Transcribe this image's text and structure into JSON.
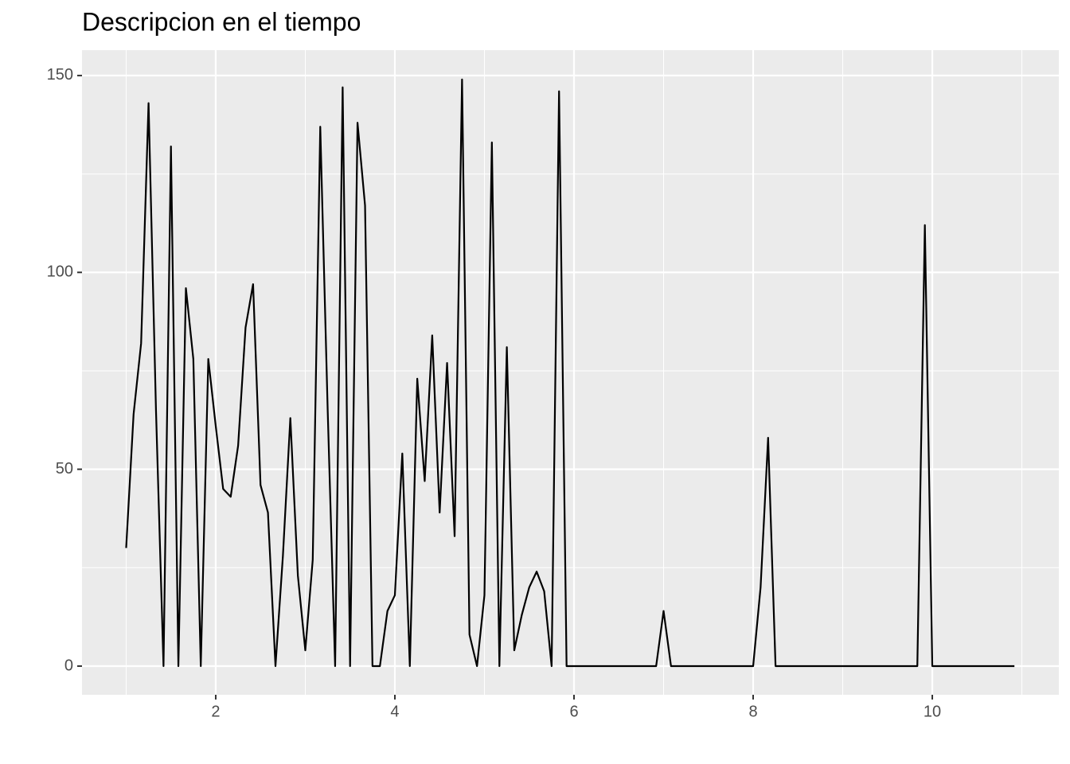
{
  "chart_data": {
    "type": "line",
    "title": "Descripcion en el tiempo",
    "x": [
      1,
      1.083,
      1.167,
      1.25,
      1.333,
      1.417,
      1.5,
      1.583,
      1.667,
      1.75,
      1.833,
      1.917,
      2,
      2.083,
      2.167,
      2.25,
      2.333,
      2.417,
      2.5,
      2.583,
      2.667,
      2.75,
      2.833,
      2.917,
      3,
      3.083,
      3.167,
      3.25,
      3.333,
      3.417,
      3.5,
      3.583,
      3.667,
      3.75,
      3.833,
      3.917,
      4,
      4.083,
      4.167,
      4.25,
      4.333,
      4.417,
      4.5,
      4.583,
      4.667,
      4.75,
      4.833,
      4.917,
      5,
      5.083,
      5.167,
      5.25,
      5.333,
      5.417,
      5.5,
      5.583,
      5.667,
      5.75,
      5.833,
      5.917,
      6,
      6.083,
      6.167,
      6.25,
      6.333,
      6.417,
      6.5,
      6.583,
      6.667,
      6.75,
      6.833,
      6.917,
      7,
      7.083,
      7.167,
      7.25,
      7.333,
      7.417,
      7.5,
      7.583,
      7.667,
      7.75,
      7.833,
      7.917,
      8,
      8.083,
      8.167,
      8.25,
      8.333,
      8.417,
      8.5,
      8.583,
      8.667,
      8.75,
      8.833,
      8.917,
      9,
      9.083,
      9.167,
      9.25,
      9.333,
      9.417,
      9.5,
      9.583,
      9.667,
      9.75,
      9.833,
      9.917,
      10,
      10.083,
      10.167,
      10.25,
      10.333,
      10.417,
      10.5,
      10.583,
      10.667,
      10.75,
      10.833,
      10.917
    ],
    "values": [
      30,
      64,
      82,
      143,
      65,
      0,
      132,
      0,
      96,
      78,
      0,
      78,
      61,
      45,
      43,
      56,
      86,
      97,
      46,
      39,
      0,
      28,
      63,
      23,
      4,
      27,
      137,
      65,
      0,
      147,
      0,
      138,
      117,
      0,
      0,
      14,
      18,
      54,
      0,
      73,
      47,
      84,
      39,
      77,
      33,
      149,
      8,
      0,
      18,
      133,
      0,
      81,
      4,
      13,
      20,
      24,
      19,
      0,
      146,
      0,
      0,
      0,
      0,
      0,
      0,
      0,
      0,
      0,
      0,
      0,
      0,
      0,
      14,
      0,
      0,
      0,
      0,
      0,
      0,
      0,
      0,
      0,
      0,
      0,
      0,
      20,
      58,
      0,
      0,
      0,
      0,
      0,
      0,
      0,
      0,
      0,
      0,
      0,
      0,
      0,
      0,
      0,
      0,
      0,
      0,
      0,
      0,
      112,
      0,
      0,
      0,
      0,
      0,
      0,
      0,
      0,
      0,
      0,
      0,
      0
    ],
    "color": "#000000",
    "xlim": [
      0.507,
      11.413
    ],
    "ylim": [
      -7.28,
      156.45
    ],
    "xticks": [
      2,
      4,
      6,
      8,
      10
    ],
    "yticks": [
      0,
      50,
      100,
      150
    ],
    "xminor": [
      1,
      3,
      5,
      7,
      9,
      11
    ],
    "yminor": [
      25,
      75,
      125
    ],
    "grid": true
  }
}
